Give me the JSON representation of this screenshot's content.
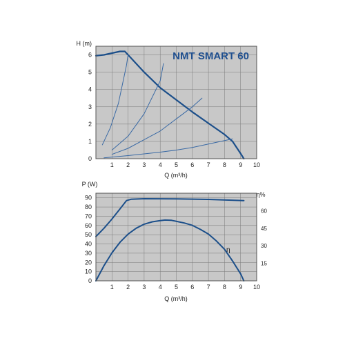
{
  "chart_data": [
    {
      "type": "line",
      "title": "NMT SMART 60",
      "xlabel": "Q (m³/h)",
      "ylabel": "H (m)",
      "xlim": [
        0,
        10
      ],
      "ylim": [
        0,
        6.5
      ],
      "x_ticks": [
        "1",
        "2",
        "3",
        "4",
        "5",
        "6",
        "7",
        "8",
        "9",
        "10"
      ],
      "y_ticks": [
        "0",
        "1",
        "2",
        "3",
        "4",
        "5",
        "6"
      ],
      "grid": true,
      "colors": {
        "curve": "#1c4f8a",
        "system": "#3a6aa5",
        "plot_bg": "#c8c8c8",
        "grid": "#7a7a7a"
      },
      "series": [
        {
          "values": [
            [
              0,
              5.95
            ],
            [
              0.5,
              6.0
            ],
            [
              1.0,
              6.1
            ],
            [
              1.5,
              6.2
            ],
            [
              1.8,
              6.2
            ],
            [
              2.0,
              6.0
            ],
            [
              3.0,
              5.0
            ],
            [
              4.0,
              4.1
            ],
            [
              5.0,
              3.4
            ],
            [
              6.0,
              2.7
            ],
            [
              7.0,
              2.05
            ],
            [
              8.0,
              1.4
            ],
            [
              8.5,
              1.0
            ],
            [
              9.0,
              0.3
            ],
            [
              9.2,
              0.0
            ]
          ]
        },
        {
          "values": [
            [
              0.4,
              0.8
            ],
            [
              0.9,
              1.8
            ],
            [
              1.4,
              3.2
            ],
            [
              1.9,
              5.4
            ],
            [
              2.0,
              6.0
            ]
          ]
        },
        {
          "values": [
            [
              1.0,
              0.5
            ],
            [
              2.0,
              1.3
            ],
            [
              3.0,
              2.6
            ],
            [
              4.0,
              4.5
            ],
            [
              4.2,
              5.5
            ]
          ]
        },
        {
          "values": [
            [
              1.0,
              0.25
            ],
            [
              2.0,
              0.6
            ],
            [
              3.0,
              1.1
            ],
            [
              4.0,
              1.6
            ],
            [
              5.0,
              2.3
            ],
            [
              6.0,
              3.0
            ],
            [
              6.6,
              3.5
            ]
          ]
        },
        {
          "values": [
            [
              0.5,
              0.05
            ],
            [
              2.0,
              0.18
            ],
            [
              4.0,
              0.38
            ],
            [
              5.0,
              0.5
            ],
            [
              6.0,
              0.65
            ],
            [
              7.0,
              0.85
            ],
            [
              8.0,
              1.05
            ],
            [
              8.5,
              1.15
            ]
          ]
        }
      ]
    },
    {
      "type": "line",
      "xlabel": "Q (m³/h)",
      "ylabel": "P (W)",
      "y2label": "η%",
      "xlim": [
        0,
        10
      ],
      "ylim": [
        0,
        95
      ],
      "y2lim": [
        0,
        75
      ],
      "x_ticks": [
        "1",
        "2",
        "3",
        "4",
        "5",
        "6",
        "7",
        "8",
        "9",
        "10"
      ],
      "y_ticks": [
        "0",
        "10",
        "20",
        "30",
        "40",
        "50",
        "60",
        "70",
        "80",
        "90"
      ],
      "y2_ticks": [
        "15",
        "30",
        "45",
        "60"
      ],
      "grid": true,
      "colors": {
        "curve": "#1c4f8a",
        "plot_bg": "#c8c8c8",
        "grid": "#7a7a7a"
      },
      "series": [
        {
          "axis": "left",
          "values": [
            [
              0,
              48
            ],
            [
              0.5,
              57
            ],
            [
              1.0,
              67
            ],
            [
              1.5,
              78
            ],
            [
              1.9,
              87
            ],
            [
              2.2,
              88.5
            ],
            [
              3.0,
              89
            ],
            [
              5.0,
              88.8
            ],
            [
              7.0,
              88.3
            ],
            [
              9.2,
              87
            ]
          ]
        },
        {
          "name": "η",
          "axis": "right",
          "values": [
            [
              0,
              0
            ],
            [
              0.5,
              13
            ],
            [
              1.0,
              24
            ],
            [
              1.5,
              33
            ],
            [
              2.0,
              40
            ],
            [
              2.5,
              45
            ],
            [
              3.0,
              48.5
            ],
            [
              3.5,
              50.5
            ],
            [
              4.0,
              51.5
            ],
            [
              4.3,
              52
            ],
            [
              4.7,
              51.8
            ],
            [
              5.5,
              49.5
            ],
            [
              6.0,
              47.5
            ],
            [
              6.5,
              44
            ],
            [
              7.0,
              40
            ],
            [
              7.5,
              34
            ],
            [
              8.0,
              27
            ],
            [
              8.5,
              17
            ],
            [
              9.0,
              6
            ],
            [
              9.2,
              0
            ]
          ]
        }
      ]
    }
  ]
}
